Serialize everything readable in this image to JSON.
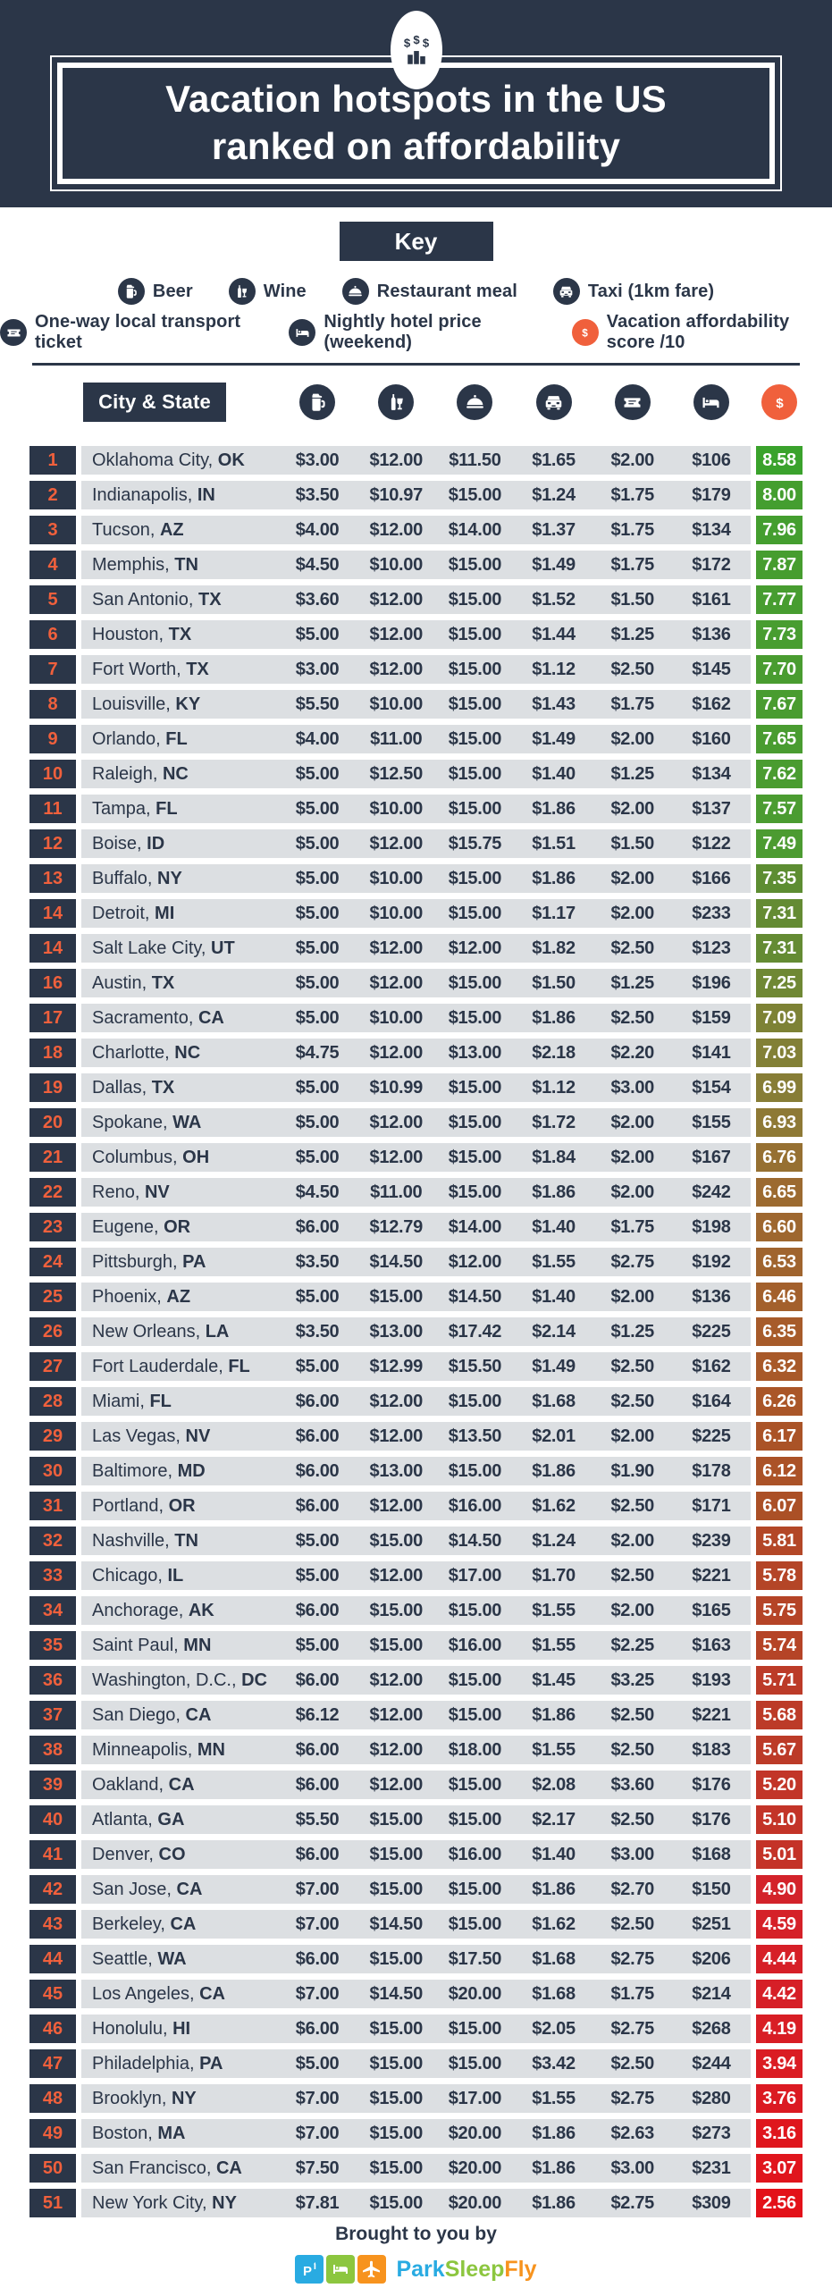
{
  "header": {
    "title_line1": "Vacation hotspots in the US",
    "title_line2": "ranked on affordability",
    "badge_icon": "money-bars-icon"
  },
  "key": {
    "title": "Key",
    "rows": [
      [
        {
          "icon": "beer-icon",
          "label": "Beer"
        },
        {
          "icon": "wine-icon",
          "label": "Wine"
        },
        {
          "icon": "restaurant-icon",
          "label": "Restaurant meal"
        },
        {
          "icon": "taxi-icon",
          "label": "Taxi (1km fare)"
        }
      ],
      [
        {
          "icon": "ticket-icon",
          "label": "One-way local transport ticket"
        },
        {
          "icon": "hotel-icon",
          "label": "Nightly hotel price (weekend)"
        },
        {
          "icon": "dollar-icon",
          "label": "Vacation affordability score /10"
        }
      ]
    ]
  },
  "table": {
    "city_header": "City & State",
    "column_icons": [
      "beer-icon",
      "wine-icon",
      "restaurant-icon",
      "taxi-icon",
      "ticket-icon",
      "hotel-icon"
    ],
    "score_icon": "dollar-icon"
  },
  "chart_data": {
    "type": "table",
    "title": "Vacation hotspots in the US ranked on affordability",
    "columns": [
      "Rank",
      "City & State",
      "Beer",
      "Wine",
      "Restaurant meal",
      "Taxi (1km fare)",
      "One-way local transport ticket",
      "Nightly hotel price (weekend)",
      "Vacation affordability score /10"
    ],
    "rows": [
      {
        "rank": "1",
        "city": "Oklahoma City,",
        "state": "OK",
        "beer": "$3.00",
        "wine": "$12.00",
        "meal": "$11.50",
        "taxi": "$1.65",
        "ticket": "$2.00",
        "hotel": "$106",
        "score": "8.58"
      },
      {
        "rank": "2",
        "city": "Indianapolis,",
        "state": "IN",
        "beer": "$3.50",
        "wine": "$10.97",
        "meal": "$15.00",
        "taxi": "$1.24",
        "ticket": "$1.75",
        "hotel": "$179",
        "score": "8.00"
      },
      {
        "rank": "3",
        "city": "Tucson,",
        "state": "AZ",
        "beer": "$4.00",
        "wine": "$12.00",
        "meal": "$14.00",
        "taxi": "$1.37",
        "ticket": "$1.75",
        "hotel": "$134",
        "score": "7.96"
      },
      {
        "rank": "4",
        "city": "Memphis,",
        "state": "TN",
        "beer": "$4.50",
        "wine": "$10.00",
        "meal": "$15.00",
        "taxi": "$1.49",
        "ticket": "$1.75",
        "hotel": "$172",
        "score": "7.87"
      },
      {
        "rank": "5",
        "city": "San Antonio,",
        "state": "TX",
        "beer": "$3.60",
        "wine": "$12.00",
        "meal": "$15.00",
        "taxi": "$1.52",
        "ticket": "$1.50",
        "hotel": "$161",
        "score": "7.77"
      },
      {
        "rank": "6",
        "city": "Houston,",
        "state": "TX",
        "beer": "$5.00",
        "wine": "$12.00",
        "meal": "$15.00",
        "taxi": "$1.44",
        "ticket": "$1.25",
        "hotel": "$136",
        "score": "7.73"
      },
      {
        "rank": "7",
        "city": "Fort Worth,",
        "state": "TX",
        "beer": "$3.00",
        "wine": "$12.00",
        "meal": "$15.00",
        "taxi": "$1.12",
        "ticket": "$2.50",
        "hotel": "$145",
        "score": "7.70"
      },
      {
        "rank": "8",
        "city": "Louisville,",
        "state": "KY",
        "beer": "$5.50",
        "wine": "$10.00",
        "meal": "$15.00",
        "taxi": "$1.43",
        "ticket": "$1.75",
        "hotel": "$162",
        "score": "7.67"
      },
      {
        "rank": "9",
        "city": "Orlando,",
        "state": "FL",
        "beer": "$4.00",
        "wine": "$11.00",
        "meal": "$15.00",
        "taxi": "$1.49",
        "ticket": "$2.00",
        "hotel": "$160",
        "score": "7.65"
      },
      {
        "rank": "10",
        "city": "Raleigh,",
        "state": "NC",
        "beer": "$5.00",
        "wine": "$12.50",
        "meal": "$15.00",
        "taxi": "$1.40",
        "ticket": "$1.25",
        "hotel": "$134",
        "score": "7.62"
      },
      {
        "rank": "11",
        "city": "Tampa,",
        "state": "FL",
        "beer": "$5.00",
        "wine": "$10.00",
        "meal": "$15.00",
        "taxi": "$1.86",
        "ticket": "$2.00",
        "hotel": "$137",
        "score": "7.57"
      },
      {
        "rank": "12",
        "city": "Boise,",
        "state": "ID",
        "beer": "$5.00",
        "wine": "$12.00",
        "meal": "$15.75",
        "taxi": "$1.51",
        "ticket": "$1.50",
        "hotel": "$122",
        "score": "7.49"
      },
      {
        "rank": "13",
        "city": "Buffalo,",
        "state": "NY",
        "beer": "$5.00",
        "wine": "$10.00",
        "meal": "$15.00",
        "taxi": "$1.86",
        "ticket": "$2.00",
        "hotel": "$166",
        "score": "7.35"
      },
      {
        "rank": "14",
        "city": "Detroit,",
        "state": "MI",
        "beer": "$5.00",
        "wine": "$10.00",
        "meal": "$15.00",
        "taxi": "$1.17",
        "ticket": "$2.00",
        "hotel": "$233",
        "score": "7.31"
      },
      {
        "rank": "14",
        "city": "Salt Lake City,",
        "state": "UT",
        "beer": "$5.00",
        "wine": "$12.00",
        "meal": "$12.00",
        "taxi": "$1.82",
        "ticket": "$2.50",
        "hotel": "$123",
        "score": "7.31"
      },
      {
        "rank": "16",
        "city": "Austin,",
        "state": "TX",
        "beer": "$5.00",
        "wine": "$12.00",
        "meal": "$15.00",
        "taxi": "$1.50",
        "ticket": "$1.25",
        "hotel": "$196",
        "score": "7.25"
      },
      {
        "rank": "17",
        "city": "Sacramento,",
        "state": "CA",
        "beer": "$5.00",
        "wine": "$10.00",
        "meal": "$15.00",
        "taxi": "$1.86",
        "ticket": "$2.50",
        "hotel": "$159",
        "score": "7.09"
      },
      {
        "rank": "18",
        "city": "Charlotte,",
        "state": "NC",
        "beer": "$4.75",
        "wine": "$12.00",
        "meal": "$13.00",
        "taxi": "$2.18",
        "ticket": "$2.20",
        "hotel": "$141",
        "score": "7.03"
      },
      {
        "rank": "19",
        "city": "Dallas,",
        "state": "TX",
        "beer": "$5.00",
        "wine": "$10.99",
        "meal": "$15.00",
        "taxi": "$1.12",
        "ticket": "$3.00",
        "hotel": "$154",
        "score": "6.99"
      },
      {
        "rank": "20",
        "city": "Spokane,",
        "state": "WA",
        "beer": "$5.00",
        "wine": "$12.00",
        "meal": "$15.00",
        "taxi": "$1.72",
        "ticket": "$2.00",
        "hotel": "$155",
        "score": "6.93"
      },
      {
        "rank": "21",
        "city": "Columbus,",
        "state": "OH",
        "beer": "$5.00",
        "wine": "$12.00",
        "meal": "$15.00",
        "taxi": "$1.84",
        "ticket": "$2.00",
        "hotel": "$167",
        "score": "6.76"
      },
      {
        "rank": "22",
        "city": "Reno,",
        "state": "NV",
        "beer": "$4.50",
        "wine": "$11.00",
        "meal": "$15.00",
        "taxi": "$1.86",
        "ticket": "$2.00",
        "hotel": "$242",
        "score": "6.65"
      },
      {
        "rank": "23",
        "city": "Eugene,",
        "state": "OR",
        "beer": "$6.00",
        "wine": "$12.79",
        "meal": "$14.00",
        "taxi": "$1.40",
        "ticket": "$1.75",
        "hotel": "$198",
        "score": "6.60"
      },
      {
        "rank": "24",
        "city": "Pittsburgh,",
        "state": "PA",
        "beer": "$3.50",
        "wine": "$14.50",
        "meal": "$12.00",
        "taxi": "$1.55",
        "ticket": "$2.75",
        "hotel": "$192",
        "score": "6.53"
      },
      {
        "rank": "25",
        "city": "Phoenix,",
        "state": "AZ",
        "beer": "$5.00",
        "wine": "$15.00",
        "meal": "$14.50",
        "taxi": "$1.40",
        "ticket": "$2.00",
        "hotel": "$136",
        "score": "6.46"
      },
      {
        "rank": "26",
        "city": "New Orleans,",
        "state": "LA",
        "beer": "$3.50",
        "wine": "$13.00",
        "meal": "$17.42",
        "taxi": "$2.14",
        "ticket": "$1.25",
        "hotel": "$225",
        "score": "6.35"
      },
      {
        "rank": "27",
        "city": "Fort Lauderdale,",
        "state": "FL",
        "beer": "$5.00",
        "wine": "$12.99",
        "meal": "$15.50",
        "taxi": "$1.49",
        "ticket": "$2.50",
        "hotel": "$162",
        "score": "6.32"
      },
      {
        "rank": "28",
        "city": "Miami,",
        "state": "FL",
        "beer": "$6.00",
        "wine": "$12.00",
        "meal": "$15.00",
        "taxi": "$1.68",
        "ticket": "$2.50",
        "hotel": "$164",
        "score": "6.26"
      },
      {
        "rank": "29",
        "city": "Las Vegas,",
        "state": "NV",
        "beer": "$6.00",
        "wine": "$12.00",
        "meal": "$13.50",
        "taxi": "$2.01",
        "ticket": "$2.00",
        "hotel": "$225",
        "score": "6.17"
      },
      {
        "rank": "30",
        "city": "Baltimore,",
        "state": "MD",
        "beer": "$6.00",
        "wine": "$13.00",
        "meal": "$15.00",
        "taxi": "$1.86",
        "ticket": "$1.90",
        "hotel": "$178",
        "score": "6.12"
      },
      {
        "rank": "31",
        "city": "Portland,",
        "state": "OR",
        "beer": "$6.00",
        "wine": "$12.00",
        "meal": "$16.00",
        "taxi": "$1.62",
        "ticket": "$2.50",
        "hotel": "$171",
        "score": "6.07"
      },
      {
        "rank": "32",
        "city": "Nashville,",
        "state": "TN",
        "beer": "$5.00",
        "wine": "$15.00",
        "meal": "$14.50",
        "taxi": "$1.24",
        "ticket": "$2.00",
        "hotel": "$239",
        "score": "5.81"
      },
      {
        "rank": "33",
        "city": "Chicago,",
        "state": "IL",
        "beer": "$5.00",
        "wine": "$12.00",
        "meal": "$17.00",
        "taxi": "$1.70",
        "ticket": "$2.50",
        "hotel": "$221",
        "score": "5.78"
      },
      {
        "rank": "34",
        "city": "Anchorage,",
        "state": "AK",
        "beer": "$6.00",
        "wine": "$15.00",
        "meal": "$15.00",
        "taxi": "$1.55",
        "ticket": "$2.00",
        "hotel": "$165",
        "score": "5.75"
      },
      {
        "rank": "35",
        "city": "Saint Paul,",
        "state": "MN",
        "beer": "$5.00",
        "wine": "$15.00",
        "meal": "$16.00",
        "taxi": "$1.55",
        "ticket": "$2.25",
        "hotel": "$163",
        "score": "5.74"
      },
      {
        "rank": "36",
        "city": "Washington, D.C.,",
        "state": "DC",
        "beer": "$6.00",
        "wine": "$12.00",
        "meal": "$15.00",
        "taxi": "$1.45",
        "ticket": "$3.25",
        "hotel": "$193",
        "score": "5.71"
      },
      {
        "rank": "37",
        "city": "San Diego,",
        "state": "CA",
        "beer": "$6.12",
        "wine": "$12.00",
        "meal": "$15.00",
        "taxi": "$1.86",
        "ticket": "$2.50",
        "hotel": "$221",
        "score": "5.68"
      },
      {
        "rank": "38",
        "city": "Minneapolis,",
        "state": "MN",
        "beer": "$6.00",
        "wine": "$12.00",
        "meal": "$18.00",
        "taxi": "$1.55",
        "ticket": "$2.50",
        "hotel": "$183",
        "score": "5.67"
      },
      {
        "rank": "39",
        "city": "Oakland,",
        "state": "CA",
        "beer": "$6.00",
        "wine": "$12.00",
        "meal": "$15.00",
        "taxi": "$2.08",
        "ticket": "$3.60",
        "hotel": "$176",
        "score": "5.20"
      },
      {
        "rank": "40",
        "city": "Atlanta,",
        "state": "GA",
        "beer": "$5.50",
        "wine": "$15.00",
        "meal": "$15.00",
        "taxi": "$2.17",
        "ticket": "$2.50",
        "hotel": "$176",
        "score": "5.10"
      },
      {
        "rank": "41",
        "city": "Denver,",
        "state": "CO",
        "beer": "$6.00",
        "wine": "$15.00",
        "meal": "$16.00",
        "taxi": "$1.40",
        "ticket": "$3.00",
        "hotel": "$168",
        "score": "5.01"
      },
      {
        "rank": "42",
        "city": "San Jose,",
        "state": "CA",
        "beer": "$7.00",
        "wine": "$15.00",
        "meal": "$15.00",
        "taxi": "$1.86",
        "ticket": "$2.70",
        "hotel": "$150",
        "score": "4.90"
      },
      {
        "rank": "43",
        "city": "Berkeley,",
        "state": "CA",
        "beer": "$7.00",
        "wine": "$14.50",
        "meal": "$15.00",
        "taxi": "$1.62",
        "ticket": "$2.50",
        "hotel": "$251",
        "score": "4.59"
      },
      {
        "rank": "44",
        "city": "Seattle,",
        "state": "WA",
        "beer": "$6.00",
        "wine": "$15.00",
        "meal": "$17.50",
        "taxi": "$1.68",
        "ticket": "$2.75",
        "hotel": "$206",
        "score": "4.44"
      },
      {
        "rank": "45",
        "city": "Los Angeles,",
        "state": "CA",
        "beer": "$7.00",
        "wine": "$14.50",
        "meal": "$20.00",
        "taxi": "$1.68",
        "ticket": "$1.75",
        "hotel": "$214",
        "score": "4.42"
      },
      {
        "rank": "46",
        "city": "Honolulu,",
        "state": "HI",
        "beer": "$6.00",
        "wine": "$15.00",
        "meal": "$15.00",
        "taxi": "$2.05",
        "ticket": "$2.75",
        "hotel": "$268",
        "score": "4.19"
      },
      {
        "rank": "47",
        "city": "Philadelphia,",
        "state": "PA",
        "beer": "$5.00",
        "wine": "$15.00",
        "meal": "$15.00",
        "taxi": "$3.42",
        "ticket": "$2.50",
        "hotel": "$244",
        "score": "3.94"
      },
      {
        "rank": "48",
        "city": "Brooklyn,",
        "state": "NY",
        "beer": "$7.00",
        "wine": "$15.00",
        "meal": "$17.00",
        "taxi": "$1.55",
        "ticket": "$2.75",
        "hotel": "$280",
        "score": "3.76"
      },
      {
        "rank": "49",
        "city": "Boston,",
        "state": "MA",
        "beer": "$7.00",
        "wine": "$15.00",
        "meal": "$20.00",
        "taxi": "$1.86",
        "ticket": "$2.63",
        "hotel": "$273",
        "score": "3.16"
      },
      {
        "rank": "50",
        "city": "San Francisco,",
        "state": "CA",
        "beer": "$7.50",
        "wine": "$15.00",
        "meal": "$20.00",
        "taxi": "$1.86",
        "ticket": "$3.00",
        "hotel": "$231",
        "score": "3.07"
      },
      {
        "rank": "51",
        "city": "New York City,",
        "state": "NY",
        "beer": "$7.81",
        "wine": "$15.00",
        "meal": "$20.00",
        "taxi": "$1.86",
        "ticket": "$2.75",
        "hotel": "$309",
        "score": "2.56"
      }
    ]
  },
  "footer": {
    "text": "Brought to you by",
    "brand_park": "Park",
    "brand_sleep": "Sleep",
    "brand_fly": "Fly"
  },
  "colors": {
    "navy": "#2b3648",
    "accent_orange": "#f0603c",
    "row_stripe": "#dcdfe2",
    "brand_blue": "#29abe2",
    "brand_green": "#8cc63f",
    "brand_orange": "#f7931e",
    "score_color_stops": [
      [
        8.58,
        "#3aa22c"
      ],
      [
        7.49,
        "#4c9b31"
      ],
      [
        7.35,
        "#5d8d32"
      ],
      [
        7.25,
        "#6f8834"
      ],
      [
        7.03,
        "#828036"
      ],
      [
        6.93,
        "#8e7935"
      ],
      [
        6.6,
        "#9e672f"
      ],
      [
        6.26,
        "#aa5628"
      ],
      [
        6.07,
        "#ab5026"
      ],
      [
        5.74,
        "#b54427"
      ],
      [
        5.71,
        "#bc3b28"
      ],
      [
        5.01,
        "#c43328"
      ],
      [
        4.9,
        "#d3232a"
      ],
      [
        2.56,
        "#e31119"
      ]
    ]
  }
}
